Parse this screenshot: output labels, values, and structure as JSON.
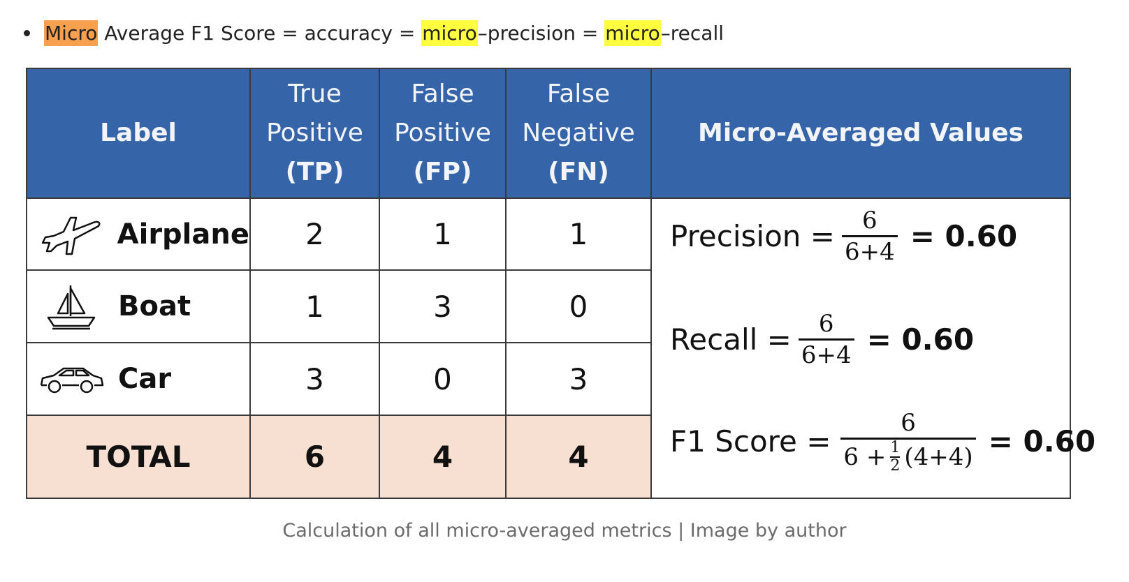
{
  "bullet": {
    "micro_1": "Micro",
    "text_1": " Average F1 Score = accuracy = ",
    "micro_2": "micro",
    "text_2": "–precision = ",
    "micro_3": "micro",
    "text_3": "–recall"
  },
  "table": {
    "headers": {
      "label": "Label",
      "tp_line1": "True",
      "tp_line2": "Positive",
      "tp_abbr": "(TP)",
      "fp_line1": "False",
      "fp_line2": "Positive",
      "fp_abbr": "(FP)",
      "fn_line1": "False",
      "fn_line2": "Negative",
      "fn_abbr": "(FN)",
      "values": "Micro-Averaged Values"
    },
    "rows": [
      {
        "label": "Airplane",
        "icon": "airplane-icon",
        "tp": "2",
        "fp": "1",
        "fn": "1"
      },
      {
        "label": "Boat",
        "icon": "sailboat-icon",
        "tp": "1",
        "fp": "3",
        "fn": "0"
      },
      {
        "label": "Car",
        "icon": "car-icon",
        "tp": "3",
        "fp": "0",
        "fn": "3"
      }
    ],
    "total": {
      "label": "TOTAL",
      "tp": "6",
      "fp": "4",
      "fn": "4"
    },
    "formulas": {
      "precision": {
        "name": "Precision =",
        "numerator": "6",
        "denominator": "6+4",
        "result": "= 0.60"
      },
      "recall": {
        "name": "Recall =",
        "numerator": "6",
        "denominator": "6+4",
        "result": "= 0.60"
      },
      "f1": {
        "name": "F1 Score =",
        "numerator": "6",
        "den_prefix": "6 +",
        "half_num": "1",
        "half_den": "2",
        "den_suffix": "(4+4)",
        "result": "= 0.60"
      }
    }
  },
  "caption": "Calculation of all micro-averaged metrics | Image by author",
  "colors": {
    "header_bg": "#3565a8",
    "total_bg": "#f7e0d2",
    "highlight_orange": "#f7a04d",
    "highlight_yellow": "#ffff40"
  }
}
